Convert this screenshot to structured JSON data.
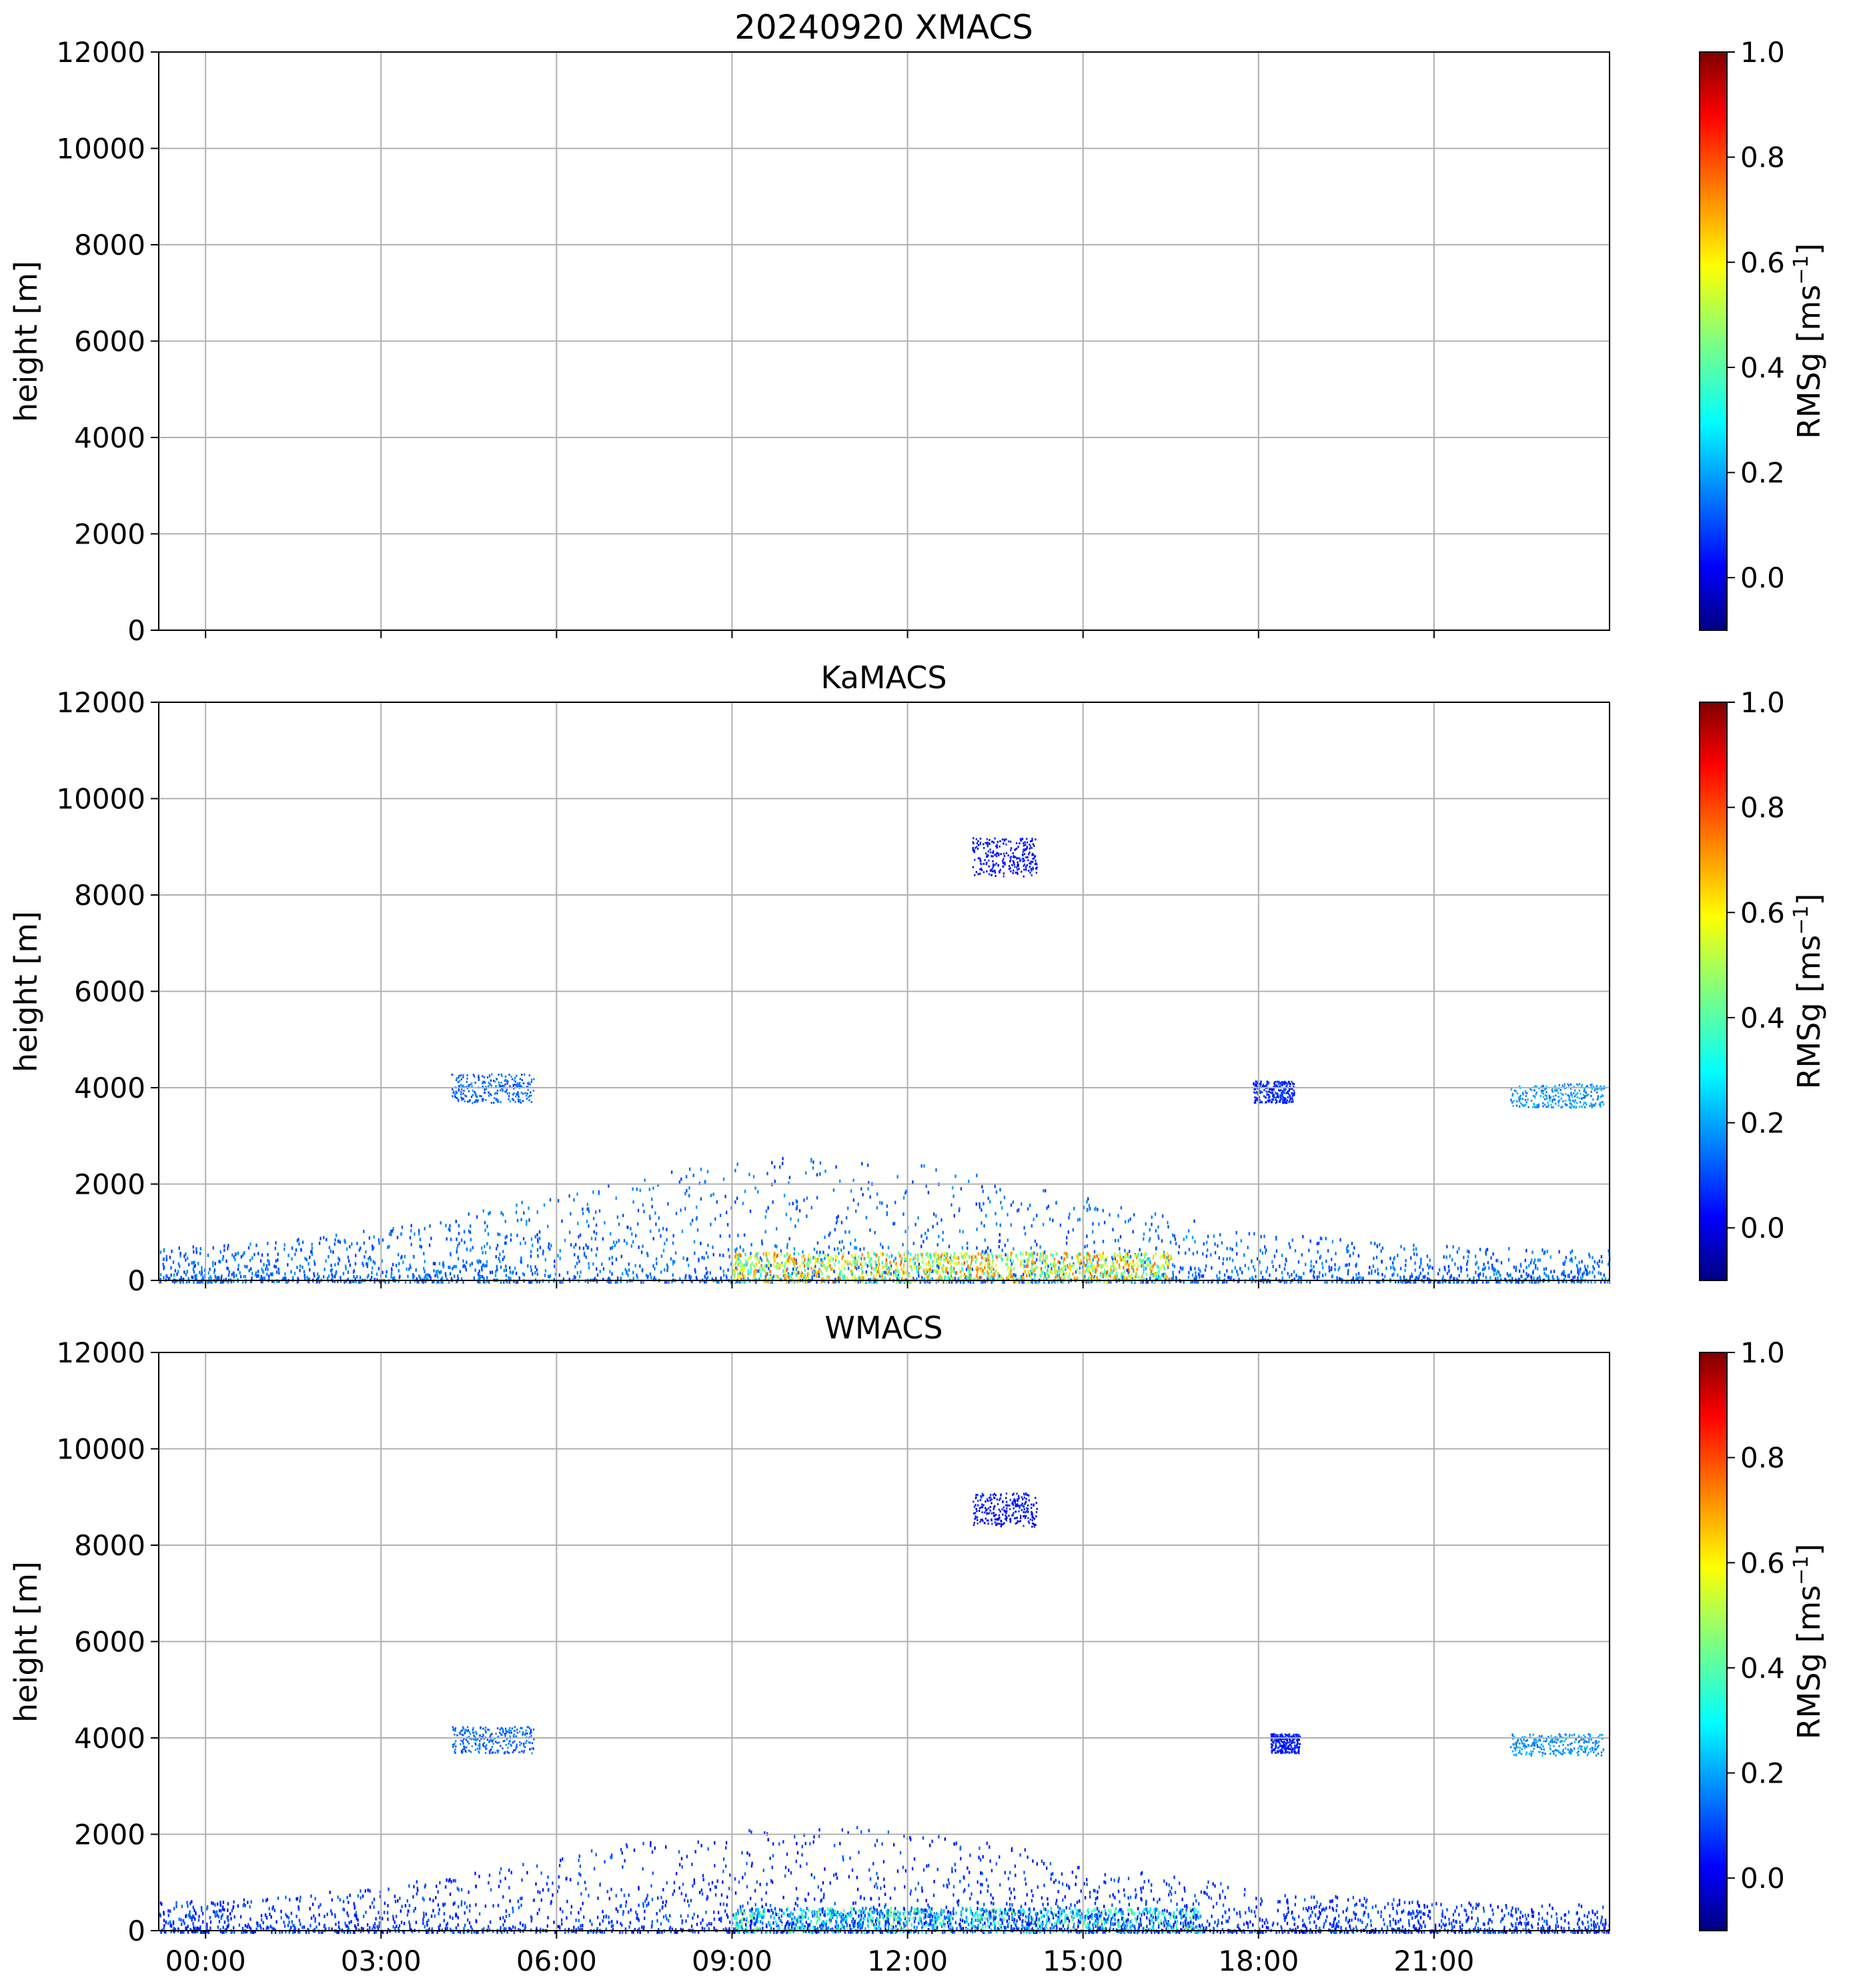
{
  "figure_title_note": "Three stacked radar time-height panels sharing a time axis",
  "chart_data": [
    {
      "type": "heatmap",
      "title": "20240920 XMACS",
      "ylabel": "height [m]",
      "ylim": [
        0,
        12000
      ],
      "yticks": [
        "0",
        "2000",
        "4000",
        "6000",
        "8000",
        "10000",
        "12000"
      ],
      "xlim_hours": [
        -0.8,
        24
      ],
      "xticks": [
        "00:00",
        "03:00",
        "06:00",
        "09:00",
        "12:00",
        "15:00",
        "18:00",
        "21:00"
      ],
      "xticks_visible": false,
      "grid": true,
      "colorbar": {
        "label_main": "RMSg [ms",
        "label_sup": "−1",
        "label_end": "]",
        "range": [
          -0.1,
          1.0
        ],
        "ticks": [
          "0.0",
          "0.2",
          "0.4",
          "0.6",
          "0.8",
          "1.0"
        ],
        "colormap": "jet"
      },
      "features": []
    },
    {
      "type": "heatmap",
      "title": "KaMACS",
      "ylabel": "height [m]",
      "ylim": [
        0,
        12000
      ],
      "yticks": [
        "0",
        "2000",
        "4000",
        "6000",
        "8000",
        "10000",
        "12000"
      ],
      "xlim_hours": [
        -0.8,
        24
      ],
      "xticks": [
        "00:00",
        "03:00",
        "06:00",
        "09:00",
        "12:00",
        "15:00",
        "18:00",
        "21:00"
      ],
      "xticks_visible": false,
      "grid": true,
      "colorbar": {
        "label_main": "RMSg [ms",
        "label_sup": "−1",
        "label_end": "]",
        "range": [
          -0.1,
          1.0
        ],
        "ticks": [
          "0.0",
          "0.2",
          "0.4",
          "0.6",
          "0.8",
          "1.0"
        ],
        "colormap": "jet"
      },
      "features": [
        {
          "name": "cirrus-patch",
          "t_start": 13.1,
          "t_end": 14.2,
          "h_bottom": 8400,
          "h_top": 9200,
          "value": 0.05
        },
        {
          "name": "midlevel-cloud-1",
          "t_start": 4.2,
          "t_end": 5.6,
          "h_bottom": 3700,
          "h_top": 4300,
          "value": 0.15
        },
        {
          "name": "midlevel-cloud-2",
          "t_start": 17.9,
          "t_end": 18.6,
          "h_bottom": 3700,
          "h_top": 4150,
          "value": 0.08
        },
        {
          "name": "midlevel-cloud-3",
          "t_start": 22.3,
          "t_end": 23.9,
          "h_bottom": 3600,
          "h_top": 4100,
          "value": 0.2
        },
        {
          "name": "boundary-layer",
          "t_start": -0.8,
          "t_end": 24,
          "h_bottom": 0,
          "h_top": 2600,
          "value": 0.15
        },
        {
          "name": "turbulent-core",
          "t_start": 9.0,
          "t_end": 16.5,
          "h_bottom": 0,
          "h_top": 600,
          "value": 0.55
        }
      ]
    },
    {
      "type": "heatmap",
      "title": "WMACS",
      "ylabel": "height [m]",
      "ylim": [
        0,
        12000
      ],
      "yticks": [
        "0",
        "2000",
        "4000",
        "6000",
        "8000",
        "10000",
        "12000"
      ],
      "xlim_hours": [
        -0.8,
        24
      ],
      "xticks": [
        "00:00",
        "03:00",
        "06:00",
        "09:00",
        "12:00",
        "15:00",
        "18:00",
        "21:00"
      ],
      "xticks_visible": true,
      "grid": true,
      "colorbar": {
        "label_main": "RMSg [ms",
        "label_sup": "−1",
        "label_end": "]",
        "range": [
          -0.1,
          1.0
        ],
        "ticks": [
          "0.0",
          "0.2",
          "0.4",
          "0.6",
          "0.8",
          "1.0"
        ],
        "colormap": "jet"
      },
      "features": [
        {
          "name": "cirrus-patch",
          "t_start": 13.1,
          "t_end": 14.2,
          "h_bottom": 8400,
          "h_top": 9100,
          "value": 0.05
        },
        {
          "name": "midlevel-cloud-1",
          "t_start": 4.2,
          "t_end": 5.6,
          "h_bottom": 3700,
          "h_top": 4250,
          "value": 0.15
        },
        {
          "name": "midlevel-cloud-2",
          "t_start": 18.2,
          "t_end": 18.7,
          "h_bottom": 3700,
          "h_top": 4100,
          "value": 0.06
        },
        {
          "name": "midlevel-cloud-3",
          "t_start": 22.3,
          "t_end": 23.9,
          "h_bottom": 3650,
          "h_top": 4100,
          "value": 0.2
        },
        {
          "name": "boundary-layer",
          "t_start": -0.8,
          "t_end": 24,
          "h_bottom": 0,
          "h_top": 2200,
          "value": 0.1
        },
        {
          "name": "turbulent-core",
          "t_start": 9.0,
          "t_end": 17.0,
          "h_bottom": 0,
          "h_top": 500,
          "value": 0.25
        }
      ]
    }
  ]
}
